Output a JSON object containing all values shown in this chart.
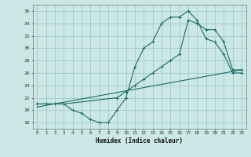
{
  "title": "",
  "xlabel": "Humidex (Indice chaleur)",
  "background_color": "#cce8e6",
  "grid_color": "#a0c8c8",
  "line_color": "#1a6b6b",
  "xlim": [
    -0.5,
    23.5
  ],
  "ylim": [
    17,
    37
  ],
  "yticks": [
    18,
    20,
    22,
    24,
    26,
    28,
    30,
    32,
    34,
    36
  ],
  "xticks": [
    0,
    1,
    2,
    3,
    4,
    5,
    6,
    7,
    8,
    9,
    10,
    11,
    12,
    13,
    14,
    15,
    16,
    17,
    18,
    19,
    20,
    21,
    22,
    23
  ],
  "line1_x": [
    0,
    1,
    2,
    3,
    4,
    5,
    6,
    7,
    8,
    9,
    10,
    11,
    12,
    13,
    14,
    15,
    16,
    17,
    18,
    19,
    20,
    21,
    22,
    23
  ],
  "line1_y": [
    21,
    21,
    21,
    21,
    20,
    19.5,
    18.5,
    18,
    18,
    20,
    22,
    27,
    30,
    31,
    34,
    35,
    35,
    36,
    34.5,
    31.5,
    31,
    29,
    26,
    26
  ],
  "line2_x": [
    0,
    1,
    2,
    3,
    9,
    10,
    11,
    12,
    13,
    14,
    15,
    16,
    17,
    18,
    19,
    20,
    21,
    22,
    23
  ],
  "line2_y": [
    21,
    21,
    21,
    21,
    22,
    23,
    24,
    25,
    26,
    27,
    28,
    29,
    34.5,
    34,
    33,
    33,
    31,
    26.5,
    26.5
  ],
  "line3_x": [
    0,
    23
  ],
  "line3_y": [
    20.5,
    26.5
  ]
}
